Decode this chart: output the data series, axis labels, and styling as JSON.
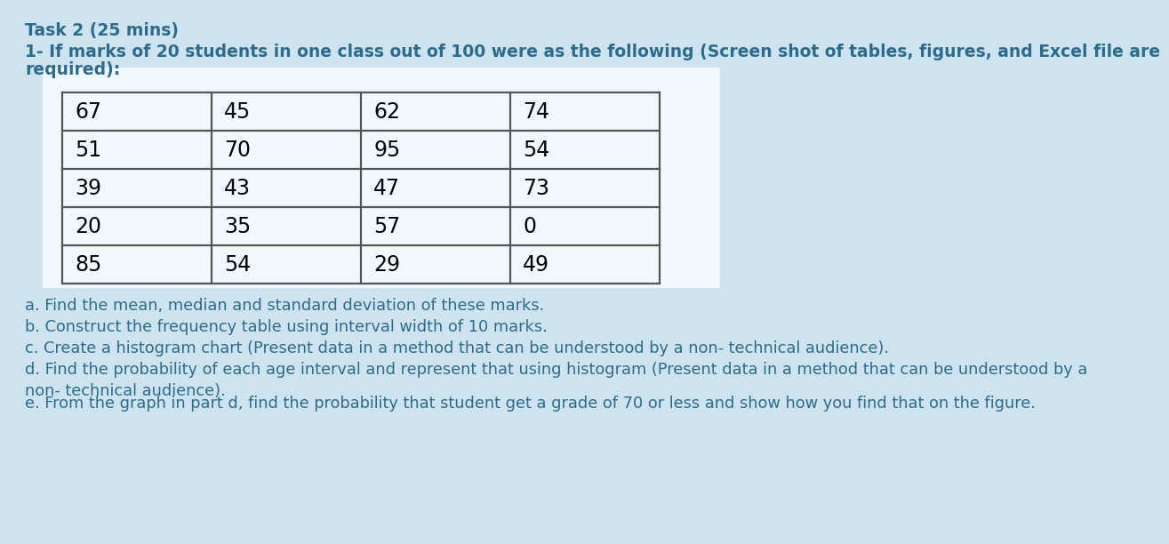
{
  "title_line1": "Task 2 (25 mins)",
  "title_line2": "1- If marks of 20 students in one class out of 100 were as the following (Screen shot of tables, figures, and Excel file are",
  "title_line3": "required):",
  "table_data": [
    [
      67,
      45,
      62,
      74
    ],
    [
      51,
      70,
      95,
      54
    ],
    [
      39,
      43,
      47,
      73
    ],
    [
      20,
      35,
      57,
      0
    ],
    [
      85,
      54,
      29,
      49
    ]
  ],
  "questions": [
    "a. Find the mean, median and standard deviation of these marks.",
    "b. Construct the frequency table using interval width of 10 marks.",
    "c. Create a histogram chart (Present data in a method that can be understood by a non- technical audience).",
    "d. Find the probability of each age interval and represent that using histogram (Present data in a method that can be understood by a\nnon- technical audience).",
    "e. From the graph in part d, find the probability that student get a grade of 70 or less and show how you find that on the figure."
  ],
  "bg_color": "#cde4f0",
  "table_bg_color": "#f0f8fd",
  "table_border_color": "#555555",
  "title_color": "#2e6b8a",
  "question_color": "#2e6b8a",
  "title_fontsize": 13.5,
  "question_fontsize": 12.8,
  "table_fontsize": 17
}
